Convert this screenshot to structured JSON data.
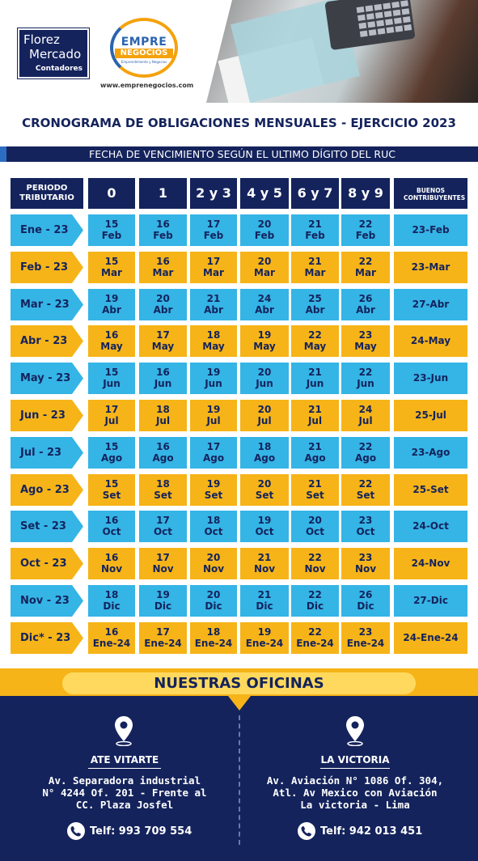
{
  "brand": {
    "company_line1": "Florez",
    "company_line2": "Mercado",
    "company_line3": "Contadores",
    "partner_logo_top": "EMPRE",
    "partner_logo_bottom": "NEGOCIOS",
    "partner_logo_tagline": "Emprendimiento y Negocios",
    "partner_url": "www.emprenegocios.com"
  },
  "title": "CRONOGRAMA DE OBLIGACIONES MENSUALES - EJERCICIO 2023",
  "subtitle": "FECHA DE VENCIMIENTO SEGÚN EL ULTIMO DÍGITO DEL RUC",
  "table": {
    "headers": {
      "period": "PERIODO TRIBUTARIO",
      "d0": "0",
      "d1": "1",
      "d23": "2 y 3",
      "d45": "4 y 5",
      "d67": "6 y 7",
      "d89": "8 y 9",
      "good": "BUENOS CONTRIBUYENTES"
    },
    "rows": [
      {
        "period": "Ene - 23",
        "dates": [
          [
            "15",
            "Feb"
          ],
          [
            "16",
            "Feb"
          ],
          [
            "17",
            "Feb"
          ],
          [
            "20",
            "Feb"
          ],
          [
            "21",
            "Feb"
          ],
          [
            "22",
            "Feb"
          ]
        ],
        "good": "23-Feb"
      },
      {
        "period": "Feb - 23",
        "dates": [
          [
            "15",
            "Mar"
          ],
          [
            "16",
            "Mar"
          ],
          [
            "17",
            "Mar"
          ],
          [
            "20",
            "Mar"
          ],
          [
            "21",
            "Mar"
          ],
          [
            "22",
            "Mar"
          ]
        ],
        "good": "23-Mar"
      },
      {
        "period": "Mar - 23",
        "dates": [
          [
            "19",
            "Abr"
          ],
          [
            "20",
            "Abr"
          ],
          [
            "21",
            "Abr"
          ],
          [
            "24",
            "Abr"
          ],
          [
            "25",
            "Abr"
          ],
          [
            "26",
            "Abr"
          ]
        ],
        "good": "27-Abr"
      },
      {
        "period": "Abr - 23",
        "dates": [
          [
            "16",
            "May"
          ],
          [
            "17",
            "May"
          ],
          [
            "18",
            "May"
          ],
          [
            "19",
            "May"
          ],
          [
            "22",
            "May"
          ],
          [
            "23",
            "May"
          ]
        ],
        "good": "24-May"
      },
      {
        "period": "May - 23",
        "dates": [
          [
            "15",
            "Jun"
          ],
          [
            "16",
            "Jun"
          ],
          [
            "19",
            "Jun"
          ],
          [
            "20",
            "Jun"
          ],
          [
            "21",
            "Jun"
          ],
          [
            "22",
            "Jun"
          ]
        ],
        "good": "23-Jun"
      },
      {
        "period": "Jun - 23",
        "dates": [
          [
            "17",
            "Jul"
          ],
          [
            "18",
            "Jul"
          ],
          [
            "19",
            "Jul"
          ],
          [
            "20",
            "Jul"
          ],
          [
            "21",
            "Jul"
          ],
          [
            "24",
            "Jul"
          ]
        ],
        "good": "25-Jul"
      },
      {
        "period": "Jul - 23",
        "dates": [
          [
            "15",
            "Ago"
          ],
          [
            "16",
            "Ago"
          ],
          [
            "17",
            "Ago"
          ],
          [
            "18",
            "Ago"
          ],
          [
            "21",
            "Ago"
          ],
          [
            "22",
            "Ago"
          ]
        ],
        "good": "23-Ago"
      },
      {
        "period": "Ago - 23",
        "dates": [
          [
            "15",
            "Set"
          ],
          [
            "18",
            "Set"
          ],
          [
            "19",
            "Set"
          ],
          [
            "20",
            "Set"
          ],
          [
            "21",
            "Set"
          ],
          [
            "22",
            "Set"
          ]
        ],
        "good": "25-Set"
      },
      {
        "period": "Set - 23",
        "dates": [
          [
            "16",
            "Oct"
          ],
          [
            "17",
            "Oct"
          ],
          [
            "18",
            "Oct"
          ],
          [
            "19",
            "Oct"
          ],
          [
            "20",
            "Oct"
          ],
          [
            "23",
            "Oct"
          ]
        ],
        "good": "24-Oct"
      },
      {
        "period": "Oct - 23",
        "dates": [
          [
            "16",
            "Nov"
          ],
          [
            "17",
            "Nov"
          ],
          [
            "20",
            "Nov"
          ],
          [
            "21",
            "Nov"
          ],
          [
            "22",
            "Nov"
          ],
          [
            "23",
            "Nov"
          ]
        ],
        "good": "24-Nov"
      },
      {
        "period": "Nov - 23",
        "dates": [
          [
            "18",
            "Dic"
          ],
          [
            "19",
            "Dic"
          ],
          [
            "20",
            "Dic"
          ],
          [
            "21",
            "Dic"
          ],
          [
            "22",
            "Dic"
          ],
          [
            "26",
            "Dic"
          ]
        ],
        "good": "27-Dic"
      },
      {
        "period": "Dic* - 23",
        "dates": [
          [
            "16",
            "Ene-24"
          ],
          [
            "17",
            "Ene-24"
          ],
          [
            "18",
            "Ene-24"
          ],
          [
            "19",
            "Ene-24"
          ],
          [
            "22",
            "Ene-24"
          ],
          [
            "23",
            "Ene-24"
          ]
        ],
        "good": "24-Ene-24"
      }
    ]
  },
  "offices": {
    "heading": "NUESTRAS OFICINAS",
    "left": {
      "name": "ATE VITARTE",
      "address": [
        "Av. Separadora industrial",
        "N° 4244 Of. 201 - Frente al",
        "CC. Plaza Josfel"
      ],
      "phone": "Telf: 993 709 554"
    },
    "right": {
      "name": "LA VICTORIA",
      "address": [
        "Av. Aviación N° 1086 Of. 304,",
        "Atl. Av Mexico con Aviación",
        "La victoria - Lima"
      ],
      "phone": "Telf: 942 013 451"
    }
  },
  "colors": {
    "navy": "#14235c",
    "blue_row": "#35b4e6",
    "yellow_row": "#f6b418"
  },
  "icons": [
    "location-pin-icon",
    "phone-icon"
  ]
}
